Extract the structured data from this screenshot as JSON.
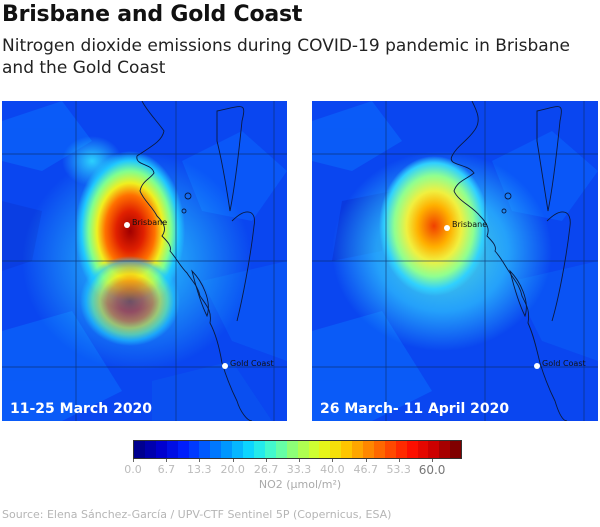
{
  "header": {
    "title": "Brisbane and Gold Coast",
    "subtitle": "Nitrogen dioxide emissions during COVID-19 pandemic in Brisbane and the Gold Coast"
  },
  "maps": [
    {
      "id": "left",
      "period": "11-25 March 2020",
      "cities": [
        {
          "name": "Brisbane"
        },
        {
          "name": "Gold Coast"
        }
      ],
      "peak_no2": 60.0
    },
    {
      "id": "right",
      "period": "26 March- 11 April 2020",
      "cities": [
        {
          "name": "Brisbane"
        },
        {
          "name": "Gold Coast"
        }
      ],
      "peak_no2": 50.0
    }
  ],
  "colorbar": {
    "label": "NO2 (µmol/m²)",
    "min": 0.0,
    "max": 66.0,
    "ticks": [
      "0.0",
      "6.7",
      "13.3",
      "20.0",
      "26.7",
      "33.3",
      "40.0",
      "46.7",
      "53.3",
      "60.0"
    ],
    "tick_values": [
      0.0,
      6.7,
      13.3,
      20.0,
      26.7,
      33.3,
      40.0,
      46.7,
      53.3,
      60.0
    ],
    "colors": [
      "#00008f",
      "#0000d0",
      "#0020ff",
      "#0060ff",
      "#00a0ff",
      "#10e0ff",
      "#50ffc0",
      "#a0ff60",
      "#e0ff20",
      "#ffd000",
      "#ff9000",
      "#ff5000",
      "#ff1000",
      "#d00000",
      "#800000"
    ]
  },
  "source": "Source: Elena Sánchez-García / UPV-CTF Sentinel 5P (Copernicus, ESA)"
}
